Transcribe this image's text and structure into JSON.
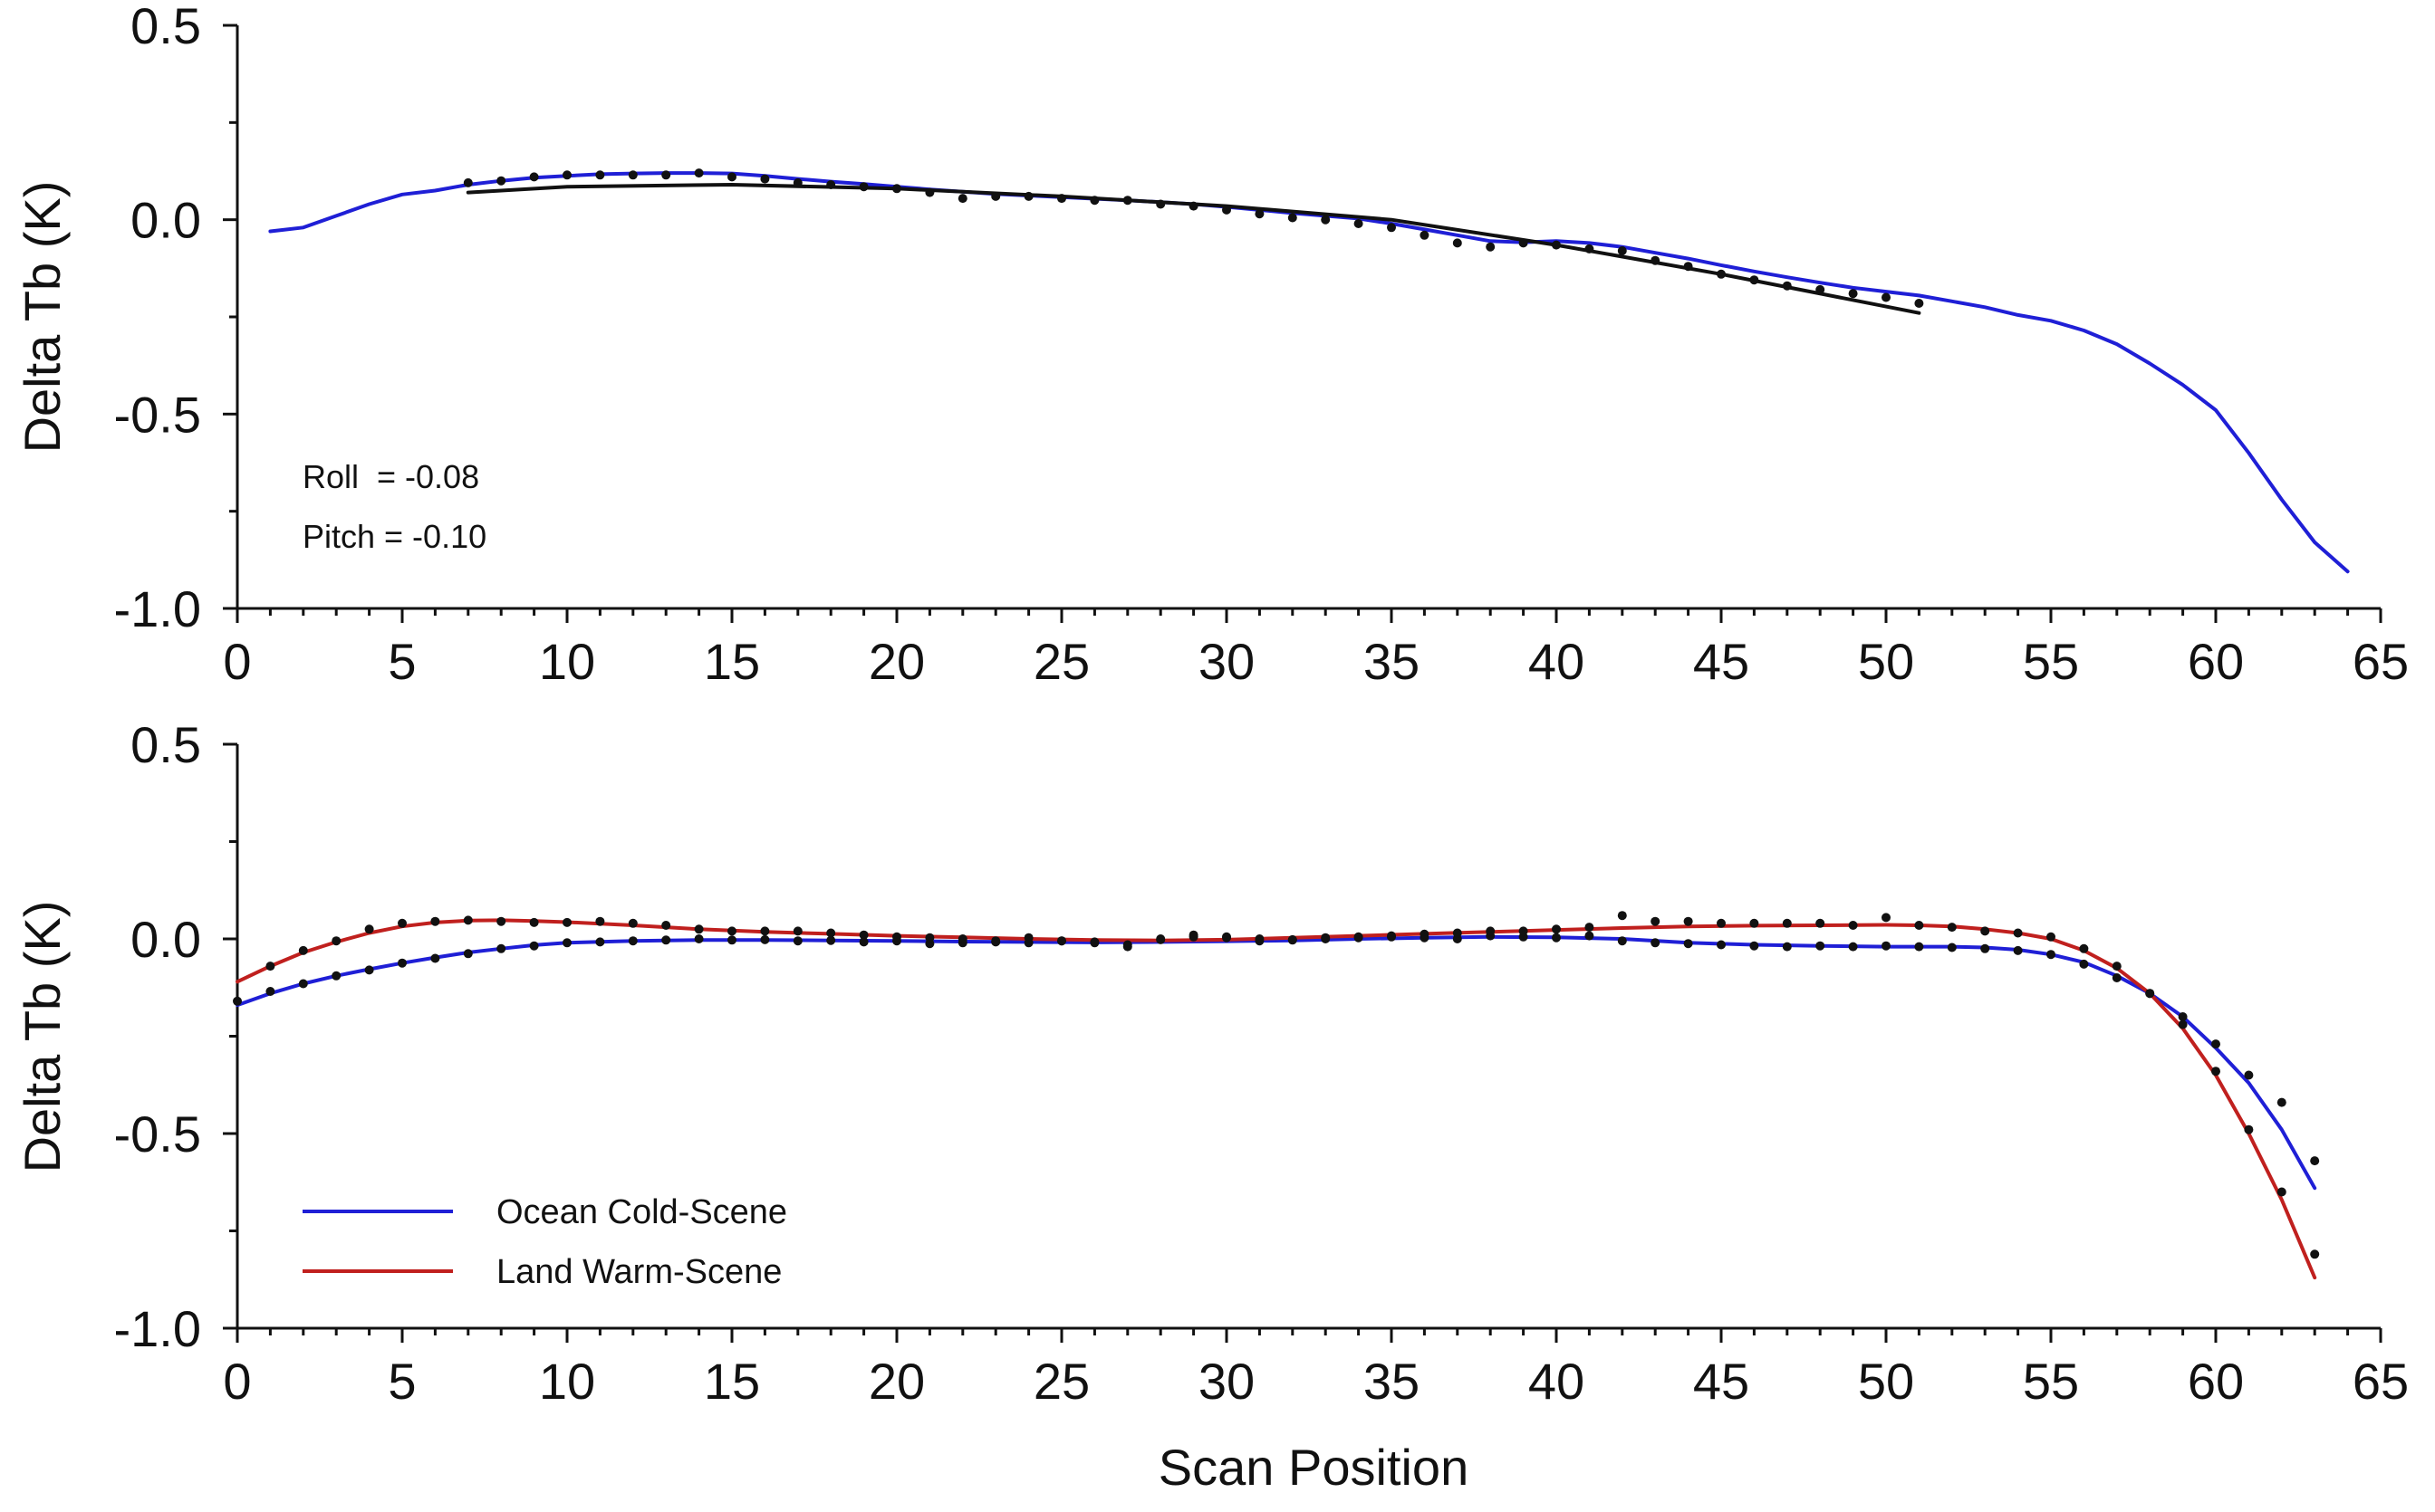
{
  "chart_data": [
    {
      "type": "line",
      "panel": "top",
      "title": "",
      "xlabel": "",
      "ylabel": "Delta Tb (K)",
      "xlim": [
        0,
        65
      ],
      "ylim": [
        -1.0,
        0.5
      ],
      "xticks": [
        0,
        5,
        10,
        15,
        20,
        25,
        30,
        35,
        40,
        45,
        50,
        55,
        60,
        65
      ],
      "xtick_labels": [
        "0",
        "5",
        "10",
        "15",
        "20",
        "25",
        "30",
        "35",
        "40",
        "45",
        "50",
        "55",
        "60",
        "65"
      ],
      "yticks": [
        -1.0,
        -0.5,
        0.0,
        0.5
      ],
      "ytick_labels": [
        "-1.0",
        "-0.5",
        "0.0",
        "0.5"
      ],
      "annotations": [
        "Roll  = -0.08",
        "Pitch = -0.10"
      ],
      "series": [
        {
          "name": "blue-curve",
          "kind": "line",
          "color": "#1f1fd6",
          "x": [
            1,
            2,
            3,
            4,
            5,
            6,
            7,
            8,
            9,
            10,
            11,
            12,
            13,
            14,
            15,
            16,
            17,
            18,
            19,
            20,
            21,
            22,
            23,
            24,
            25,
            26,
            27,
            28,
            29,
            30,
            31,
            32,
            33,
            34,
            35,
            36,
            37,
            38,
            39,
            40,
            41,
            42,
            43,
            44,
            45,
            46,
            47,
            48,
            49,
            50,
            51,
            52,
            53,
            54,
            55,
            56,
            57,
            58,
            59,
            60,
            61,
            62,
            63,
            64
          ],
          "y": [
            -0.03,
            -0.02,
            0.01,
            0.04,
            0.065,
            0.075,
            0.09,
            0.1,
            0.108,
            0.113,
            0.117,
            0.119,
            0.12,
            0.12,
            0.119,
            0.113,
            0.105,
            0.098,
            0.092,
            0.085,
            0.078,
            0.072,
            0.066,
            0.062,
            0.058,
            0.054,
            0.05,
            0.045,
            0.04,
            0.033,
            0.025,
            0.017,
            0.01,
            0.003,
            -0.01,
            -0.025,
            -0.04,
            -0.055,
            -0.058,
            -0.055,
            -0.06,
            -0.07,
            -0.085,
            -0.1,
            -0.117,
            -0.133,
            -0.148,
            -0.162,
            -0.175,
            -0.185,
            -0.195,
            -0.21,
            -0.225,
            -0.245,
            -0.26,
            -0.285,
            -0.32,
            -0.37,
            -0.425,
            -0.49,
            -0.6,
            -0.72,
            -0.83,
            -0.905
          ]
        },
        {
          "name": "black-fit",
          "kind": "line",
          "color": "#111111",
          "x": [
            7,
            10,
            15,
            20,
            25,
            30,
            35,
            40,
            45,
            51
          ],
          "y": [
            0.07,
            0.085,
            0.09,
            0.08,
            0.06,
            0.035,
            0.0,
            -0.065,
            -0.14,
            -0.24
          ]
        },
        {
          "name": "black-points",
          "kind": "scatter",
          "color": "#111111",
          "x": [
            7,
            8,
            9,
            10,
            11,
            12,
            13,
            14,
            15,
            16,
            17,
            18,
            19,
            20,
            21,
            22,
            23,
            24,
            25,
            26,
            27,
            28,
            29,
            30,
            31,
            32,
            33,
            34,
            35,
            36,
            37,
            38,
            39,
            40,
            41,
            42,
            43,
            44,
            45,
            46,
            47,
            48,
            49,
            50,
            51
          ],
          "y": [
            0.095,
            0.1,
            0.11,
            0.115,
            0.115,
            0.115,
            0.115,
            0.12,
            0.11,
            0.105,
            0.095,
            0.09,
            0.085,
            0.08,
            0.07,
            0.055,
            0.06,
            0.06,
            0.055,
            0.05,
            0.05,
            0.04,
            0.035,
            0.025,
            0.015,
            0.005,
            0.0,
            -0.01,
            -0.02,
            -0.04,
            -0.06,
            -0.07,
            -0.06,
            -0.065,
            -0.075,
            -0.08,
            -0.105,
            -0.12,
            -0.14,
            -0.155,
            -0.17,
            -0.18,
            -0.19,
            -0.2,
            -0.215
          ]
        }
      ]
    },
    {
      "type": "line",
      "panel": "bottom",
      "title": "",
      "xlabel": "Scan Position",
      "ylabel": "Delta Tb (K)",
      "xlim": [
        0,
        65
      ],
      "ylim": [
        -1.0,
        0.5
      ],
      "xticks": [
        0,
        5,
        10,
        15,
        20,
        25,
        30,
        35,
        40,
        45,
        50,
        55,
        60,
        65
      ],
      "xtick_labels": [
        "0",
        "5",
        "10",
        "15",
        "20",
        "25",
        "30",
        "35",
        "40",
        "45",
        "50",
        "55",
        "60",
        "65"
      ],
      "yticks": [
        -1.0,
        -0.5,
        0.0,
        0.5
      ],
      "ytick_labels": [
        "-1.0",
        "-0.5",
        "0.0",
        "0.5"
      ],
      "legend": {
        "position": "bottom-left",
        "entries": [
          {
            "label": "Ocean Cold-Scene",
            "color": "#1f1fd6"
          },
          {
            "label": "Land Warm-Scene",
            "color": "#c0201e"
          }
        ]
      },
      "series": [
        {
          "name": "Ocean Cold-Scene",
          "kind": "line",
          "color": "#1f1fd6",
          "x": [
            0,
            1,
            2,
            3,
            4,
            5,
            6,
            7,
            8,
            9,
            10,
            12,
            14,
            16,
            18,
            20,
            22,
            24,
            26,
            28,
            30,
            32,
            34,
            36,
            38,
            40,
            42,
            44,
            46,
            48,
            50,
            52,
            53,
            54,
            55,
            56,
            57,
            58,
            59,
            60,
            61,
            62,
            63
          ],
          "y": [
            -0.17,
            -0.14,
            -0.115,
            -0.095,
            -0.078,
            -0.062,
            -0.048,
            -0.035,
            -0.025,
            -0.016,
            -0.01,
            -0.005,
            -0.003,
            -0.003,
            -0.004,
            -0.005,
            -0.007,
            -0.008,
            -0.009,
            -0.008,
            -0.006,
            -0.004,
            0.0,
            0.003,
            0.005,
            0.004,
            0.0,
            -0.01,
            -0.015,
            -0.018,
            -0.02,
            -0.02,
            -0.022,
            -0.028,
            -0.04,
            -0.06,
            -0.095,
            -0.14,
            -0.2,
            -0.28,
            -0.37,
            -0.49,
            -0.64
          ]
        },
        {
          "name": "Land Warm-Scene",
          "kind": "line",
          "color": "#c0201e",
          "x": [
            0,
            1,
            2,
            3,
            4,
            5,
            6,
            7,
            8,
            9,
            10,
            12,
            14,
            16,
            18,
            20,
            22,
            24,
            26,
            28,
            30,
            32,
            34,
            36,
            38,
            40,
            42,
            44,
            46,
            48,
            50,
            51,
            52,
            53,
            54,
            55,
            56,
            57,
            58,
            59,
            60,
            61,
            62,
            63
          ],
          "y": [
            -0.11,
            -0.07,
            -0.035,
            -0.008,
            0.015,
            0.032,
            0.042,
            0.047,
            0.048,
            0.046,
            0.043,
            0.035,
            0.025,
            0.018,
            0.013,
            0.008,
            0.004,
            0.0,
            -0.003,
            -0.004,
            -0.002,
            0.003,
            0.008,
            0.013,
            0.018,
            0.023,
            0.028,
            0.032,
            0.034,
            0.035,
            0.036,
            0.035,
            0.032,
            0.025,
            0.015,
            0.0,
            -0.03,
            -0.075,
            -0.14,
            -0.23,
            -0.35,
            -0.5,
            -0.67,
            -0.87
          ]
        },
        {
          "name": "black-points-ocean",
          "kind": "scatter",
          "color": "#111111",
          "x": [
            0,
            1,
            2,
            3,
            4,
            5,
            6,
            7,
            8,
            9,
            10,
            11,
            12,
            13,
            14,
            15,
            16,
            17,
            18,
            19,
            20,
            21,
            22,
            23,
            24,
            25,
            26,
            27,
            28,
            29,
            30,
            31,
            32,
            33,
            34,
            35,
            36,
            37,
            38,
            39,
            40,
            41,
            42,
            43,
            44,
            45,
            46,
            47,
            48,
            49,
            50,
            51,
            52,
            53,
            54,
            55,
            56,
            57,
            58,
            59,
            60,
            61,
            62,
            63
          ],
          "y": [
            -0.16,
            -0.135,
            -0.115,
            -0.095,
            -0.08,
            -0.062,
            -0.05,
            -0.038,
            -0.025,
            -0.018,
            -0.01,
            -0.008,
            -0.005,
            -0.003,
            0.0,
            -0.003,
            -0.002,
            -0.005,
            -0.004,
            -0.008,
            -0.005,
            -0.012,
            -0.01,
            -0.008,
            -0.01,
            -0.005,
            -0.008,
            -0.015,
            -0.002,
            0.005,
            0.003,
            -0.005,
            -0.002,
            0.0,
            0.003,
            0.005,
            0.003,
            0.0,
            0.008,
            0.005,
            0.003,
            0.008,
            -0.005,
            -0.01,
            -0.012,
            -0.015,
            -0.018,
            -0.02,
            -0.018,
            -0.02,
            -0.018,
            -0.02,
            -0.022,
            -0.025,
            -0.03,
            -0.04,
            -0.065,
            -0.1,
            -0.14,
            -0.2,
            -0.27,
            -0.35,
            -0.42,
            -0.57
          ]
        },
        {
          "name": "black-points-land",
          "kind": "scatter",
          "color": "#111111",
          "x": [
            1,
            2,
            3,
            4,
            5,
            6,
            7,
            8,
            9,
            10,
            11,
            12,
            13,
            14,
            15,
            16,
            17,
            18,
            19,
            20,
            21,
            22,
            23,
            24,
            25,
            26,
            27,
            28,
            29,
            30,
            31,
            32,
            33,
            34,
            35,
            36,
            37,
            38,
            39,
            40,
            41,
            42,
            43,
            44,
            45,
            46,
            47,
            48,
            49,
            50,
            51,
            52,
            53,
            54,
            55,
            56,
            57,
            58,
            59,
            60,
            61,
            62,
            63
          ],
          "y": [
            -0.07,
            -0.03,
            -0.005,
            0.025,
            0.04,
            0.045,
            0.048,
            0.045,
            0.042,
            0.042,
            0.045,
            0.04,
            0.035,
            0.025,
            0.02,
            0.02,
            0.02,
            0.015,
            0.01,
            0.005,
            0.003,
            0.0,
            -0.005,
            0.003,
            -0.005,
            -0.01,
            -0.02,
            0.0,
            0.01,
            0.005,
            0.0,
            -0.003,
            0.003,
            0.005,
            0.008,
            0.012,
            0.015,
            0.02,
            0.02,
            0.025,
            0.03,
            0.06,
            0.045,
            0.045,
            0.04,
            0.04,
            0.04,
            0.04,
            0.035,
            0.055,
            0.035,
            0.03,
            0.02,
            0.015,
            0.005,
            -0.025,
            -0.07,
            -0.14,
            -0.22,
            -0.34,
            -0.49,
            -0.65,
            -0.81
          ]
        }
      ]
    }
  ]
}
